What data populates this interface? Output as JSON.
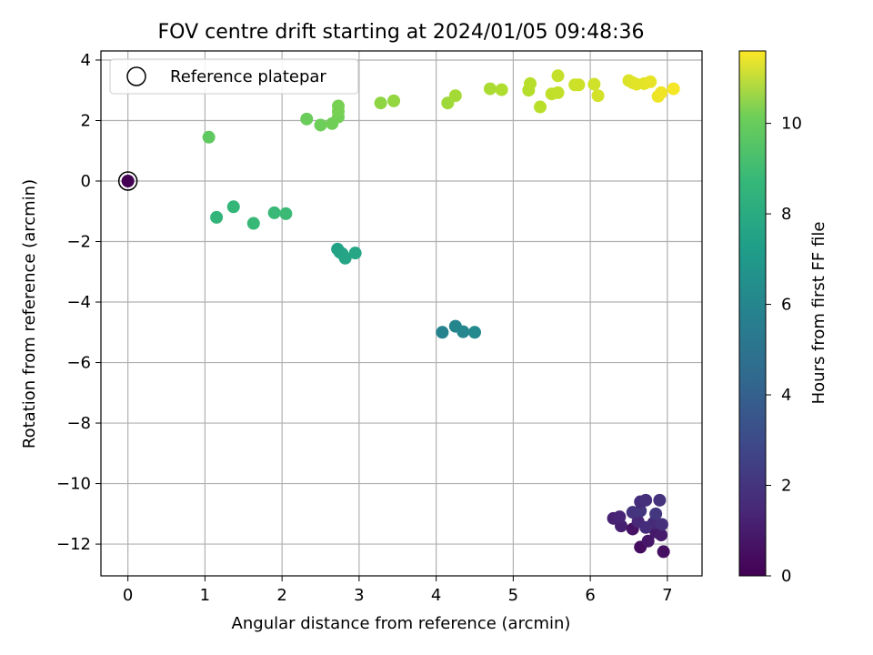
{
  "chart_data": {
    "type": "scatter",
    "title": "FOV centre drift starting at 2024/01/05 09:48:36",
    "xlabel": "Angular distance from reference (arcmin)",
    "ylabel": "Rotation from reference (arcmin)",
    "xlim": [
      -0.35,
      7.45
    ],
    "ylim": [
      -13.05,
      4.3
    ],
    "xticks": [
      0,
      1,
      2,
      3,
      4,
      5,
      6,
      7
    ],
    "yticks": [
      -12,
      -10,
      -8,
      -6,
      -4,
      -2,
      0,
      2,
      4
    ],
    "grid": true,
    "legend_position": "top-left",
    "legend_label": "Reference platepar",
    "colorbar": {
      "label": "Hours from first FF file",
      "colormap": "viridis",
      "range": [
        0,
        11.6
      ],
      "ticks": [
        0,
        2,
        4,
        6,
        8,
        10
      ]
    },
    "reference_point": {
      "x": 0,
      "y": 0,
      "c": 0
    },
    "points": [
      {
        "x": 6.65,
        "y": -12.1,
        "c": 0.4
      },
      {
        "x": 6.95,
        "y": -12.25,
        "c": 0.5
      },
      {
        "x": 6.55,
        "y": -11.5,
        "c": 0.6
      },
      {
        "x": 6.75,
        "y": -11.9,
        "c": 0.7
      },
      {
        "x": 6.85,
        "y": -11.6,
        "c": 0.8
      },
      {
        "x": 6.92,
        "y": -11.7,
        "c": 0.9
      },
      {
        "x": 6.4,
        "y": -11.4,
        "c": 1.0
      },
      {
        "x": 6.3,
        "y": -11.15,
        "c": 1.1
      },
      {
        "x": 6.38,
        "y": -11.1,
        "c": 1.2
      },
      {
        "x": 6.62,
        "y": -11.25,
        "c": 1.3
      },
      {
        "x": 6.82,
        "y": -11.3,
        "c": 1.4
      },
      {
        "x": 6.72,
        "y": -11.45,
        "c": 1.5
      },
      {
        "x": 6.93,
        "y": -11.35,
        "c": 1.6
      },
      {
        "x": 6.55,
        "y": -10.95,
        "c": 1.7
      },
      {
        "x": 6.65,
        "y": -10.9,
        "c": 1.8
      },
      {
        "x": 6.85,
        "y": -11.0,
        "c": 1.9
      },
      {
        "x": 6.9,
        "y": -10.55,
        "c": 1.7
      },
      {
        "x": 6.65,
        "y": -10.6,
        "c": 1.5
      },
      {
        "x": 6.72,
        "y": -10.55,
        "c": 1.6
      },
      {
        "x": 4.08,
        "y": -5.0,
        "c": 5.2
      },
      {
        "x": 4.25,
        "y": -4.8,
        "c": 5.3
      },
      {
        "x": 4.35,
        "y": -4.98,
        "c": 5.4
      },
      {
        "x": 4.5,
        "y": -5.0,
        "c": 5.5
      },
      {
        "x": 2.72,
        "y": -2.25,
        "c": 6.6
      },
      {
        "x": 2.75,
        "y": -2.35,
        "c": 6.7
      },
      {
        "x": 2.78,
        "y": -2.4,
        "c": 6.75
      },
      {
        "x": 2.82,
        "y": -2.55,
        "c": 6.8
      },
      {
        "x": 2.95,
        "y": -2.38,
        "c": 6.85
      },
      {
        "x": 1.15,
        "y": -1.2,
        "c": 7.6
      },
      {
        "x": 1.37,
        "y": -0.85,
        "c": 7.7
      },
      {
        "x": 1.63,
        "y": -1.4,
        "c": 7.8
      },
      {
        "x": 1.9,
        "y": -1.05,
        "c": 7.85
      },
      {
        "x": 2.05,
        "y": -1.08,
        "c": 7.9
      },
      {
        "x": 1.05,
        "y": 1.45,
        "c": 8.7
      },
      {
        "x": 2.32,
        "y": 2.05,
        "c": 8.9
      },
      {
        "x": 2.5,
        "y": 1.85,
        "c": 9.0
      },
      {
        "x": 2.65,
        "y": 1.9,
        "c": 9.05
      },
      {
        "x": 2.73,
        "y": 2.12,
        "c": 9.1
      },
      {
        "x": 2.73,
        "y": 2.3,
        "c": 9.15
      },
      {
        "x": 2.73,
        "y": 2.48,
        "c": 9.2
      },
      {
        "x": 3.28,
        "y": 2.58,
        "c": 9.6
      },
      {
        "x": 3.45,
        "y": 2.65,
        "c": 9.7
      },
      {
        "x": 4.15,
        "y": 2.58,
        "c": 9.9
      },
      {
        "x": 4.25,
        "y": 2.82,
        "c": 10.0
      },
      {
        "x": 4.7,
        "y": 3.05,
        "c": 10.1
      },
      {
        "x": 4.85,
        "y": 3.02,
        "c": 10.2
      },
      {
        "x": 5.2,
        "y": 3.0,
        "c": 10.3
      },
      {
        "x": 5.22,
        "y": 3.22,
        "c": 10.35
      },
      {
        "x": 5.35,
        "y": 2.45,
        "c": 10.4
      },
      {
        "x": 5.5,
        "y": 2.88,
        "c": 10.5
      },
      {
        "x": 5.58,
        "y": 2.92,
        "c": 10.55
      },
      {
        "x": 5.58,
        "y": 3.48,
        "c": 10.6
      },
      {
        "x": 5.8,
        "y": 3.18,
        "c": 10.7
      },
      {
        "x": 5.85,
        "y": 3.18,
        "c": 10.75
      },
      {
        "x": 6.05,
        "y": 3.2,
        "c": 10.8
      },
      {
        "x": 6.1,
        "y": 2.82,
        "c": 10.85
      },
      {
        "x": 6.5,
        "y": 3.32,
        "c": 11.0
      },
      {
        "x": 6.55,
        "y": 3.25,
        "c": 11.05
      },
      {
        "x": 6.6,
        "y": 3.2,
        "c": 11.1
      },
      {
        "x": 6.7,
        "y": 3.22,
        "c": 11.15
      },
      {
        "x": 6.78,
        "y": 3.28,
        "c": 11.2
      },
      {
        "x": 6.88,
        "y": 2.8,
        "c": 11.3
      },
      {
        "x": 6.92,
        "y": 2.92,
        "c": 11.35
      },
      {
        "x": 7.08,
        "y": 3.05,
        "c": 11.45
      }
    ]
  }
}
